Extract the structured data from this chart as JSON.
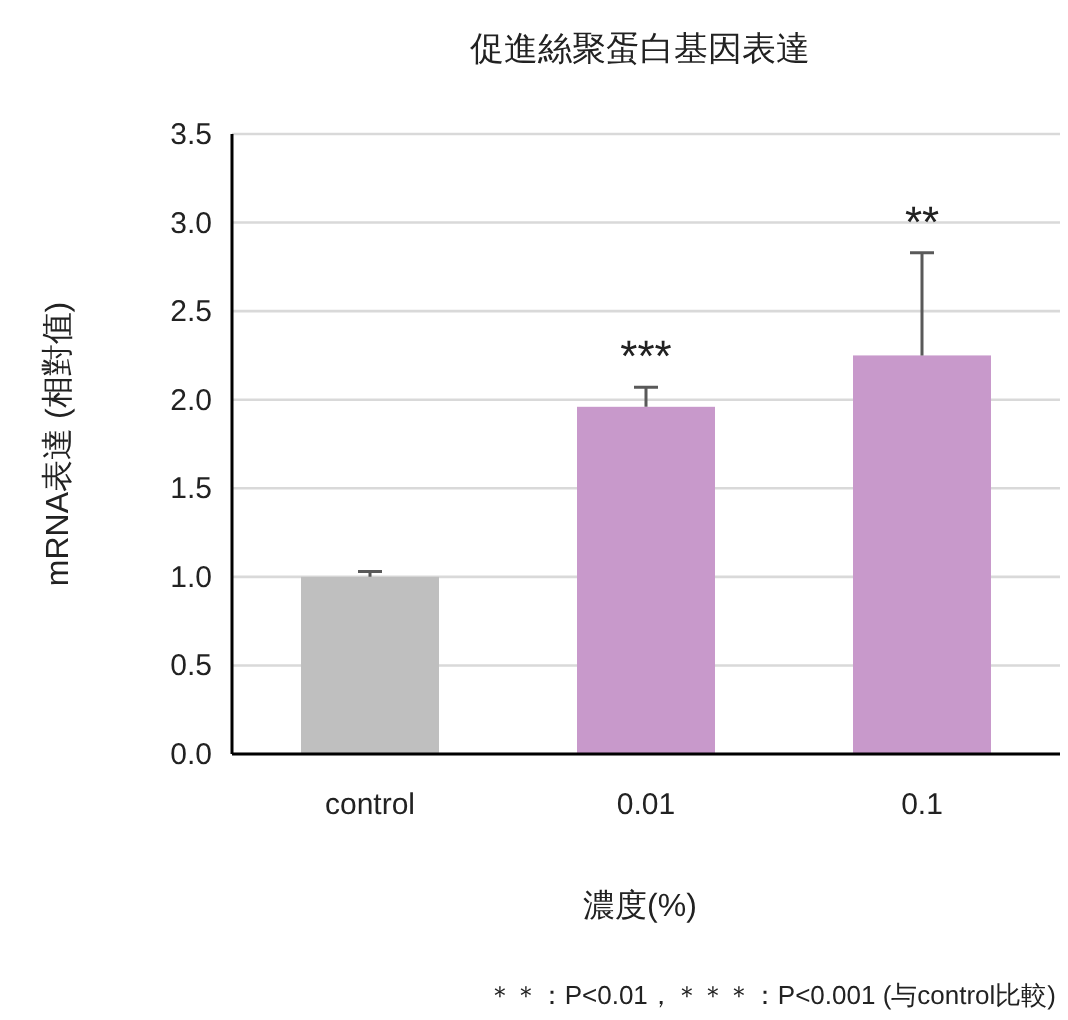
{
  "chart_data": {
    "type": "bar",
    "title": "促進絲聚蛋白基因表達",
    "xlabel": "濃度(%)",
    "ylabel": "mRNA表達 (相對值)",
    "categories": [
      "control",
      "0.01",
      "0.1"
    ],
    "values": [
      1.0,
      1.96,
      2.25
    ],
    "colors": [
      "#bfbfbf",
      "#c899cb",
      "#c899cb"
    ],
    "errors": [
      [
        1.0,
        1.03
      ],
      [
        1.96,
        2.07
      ],
      [
        2.25,
        2.83
      ]
    ],
    "ylim": [
      0,
      3.5
    ],
    "yticks": [
      {
        "value": 0,
        "label": "0.0"
      },
      {
        "value": 0.5,
        "label": "0.5"
      },
      {
        "value": 1,
        "label": "1.0"
      },
      {
        "value": 1.5,
        "label": "1.5"
      },
      {
        "value": 2,
        "label": "2.0"
      },
      {
        "value": 2.5,
        "label": "2.5"
      },
      {
        "value": 3,
        "label": "3.0"
      },
      {
        "value": 3.5,
        "label": "3.5"
      }
    ],
    "grid": "y",
    "annotations": [
      {
        "text": "***",
        "x": "0.01",
        "y": 2.07
      },
      {
        "text": "**",
        "x": "0.1",
        "y": 2.83
      },
      "＊＊：P<0.01，＊＊＊：P<0.001 (与control比較)"
    ]
  }
}
